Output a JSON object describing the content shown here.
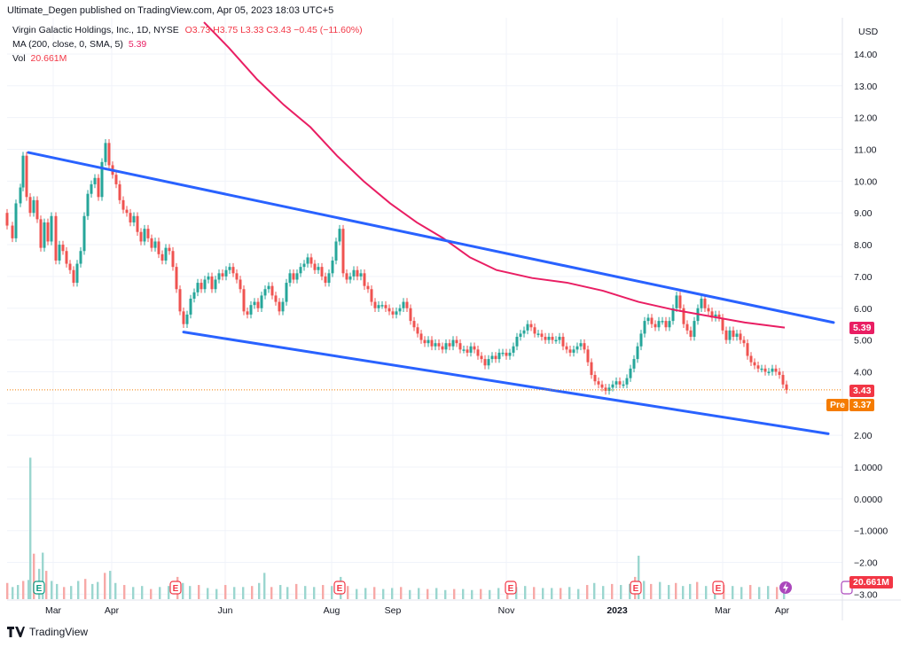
{
  "header": {
    "published_text": "Ultimate_Degen published on TradingView.com, Apr 05, 2023 18:03 UTC+5",
    "symbol_text": "Virgin Galactic Holdings, Inc., 1D, NYSE",
    "ohlc_text": "O3.73 H3.75 L3.33 C3.43 −0.45 (−11.60%)",
    "ma_label": "MA (200, close, 0, SMA, 5)",
    "ma_value": "5.39",
    "vol_label": "Vol",
    "vol_value": "20.661M"
  },
  "badges": {
    "ma": "5.39",
    "price": "3.43",
    "pre_label": "Pre",
    "pre_price": "3.37",
    "volume": "20.661M"
  },
  "footer": {
    "brand": "TradingView"
  },
  "colors": {
    "up": "#26a69a",
    "down": "#ef5350",
    "ma": "#e91e63",
    "trendline": "#2962ff",
    "price_line": "#f57c00",
    "vol_up": "#9bd6cf",
    "vol_down": "#f7a9a7"
  },
  "chart_data": {
    "type": "candlestick",
    "currency": "USD",
    "y_ticks": [
      "14.00",
      "13.00",
      "12.00",
      "11.00",
      "10.00",
      "9.00",
      "8.00",
      "7.00",
      "6.00",
      "5.00",
      "4.00",
      "2.00",
      "1.0000",
      "0.0000",
      "−1.0000",
      "−2.00",
      "−3.00"
    ],
    "x_ticks": [
      "Mar",
      "Apr",
      "Jun",
      "Aug",
      "Sep",
      "Nov",
      "2023",
      "Mar",
      "Apr"
    ],
    "price_path": [
      [
        0,
        9.0
      ],
      [
        8,
        8.6
      ],
      [
        14,
        8.2
      ],
      [
        18,
        9.3
      ],
      [
        23,
        9.8
      ],
      [
        26,
        10.8
      ],
      [
        30,
        9.5
      ],
      [
        34,
        9.0
      ],
      [
        38,
        9.4
      ],
      [
        42,
        8.8
      ],
      [
        46,
        7.9
      ],
      [
        50,
        8.7
      ],
      [
        54,
        8.1
      ],
      [
        58,
        8.9
      ],
      [
        63,
        7.5
      ],
      [
        67,
        8.0
      ],
      [
        71,
        7.8
      ],
      [
        75,
        7.4
      ],
      [
        79,
        7.2
      ],
      [
        83,
        6.8
      ],
      [
        87,
        7.4
      ],
      [
        91,
        7.8
      ],
      [
        95,
        8.9
      ],
      [
        99,
        9.6
      ],
      [
        103,
        9.9
      ],
      [
        107,
        10.1
      ],
      [
        111,
        9.5
      ],
      [
        115,
        10.6
      ],
      [
        119,
        11.2
      ],
      [
        123,
        10.5
      ],
      [
        127,
        10.2
      ],
      [
        131,
        9.9
      ],
      [
        135,
        9.4
      ],
      [
        139,
        9.1
      ],
      [
        143,
        9.0
      ],
      [
        147,
        8.7
      ],
      [
        151,
        8.9
      ],
      [
        155,
        8.4
      ],
      [
        159,
        8.1
      ],
      [
        163,
        8.5
      ],
      [
        167,
        8.2
      ],
      [
        171,
        7.9
      ],
      [
        175,
        8.1
      ],
      [
        179,
        7.7
      ],
      [
        183,
        7.5
      ],
      [
        187,
        7.9
      ],
      [
        191,
        7.8
      ],
      [
        195,
        7.3
      ],
      [
        199,
        6.6
      ],
      [
        203,
        5.9
      ],
      [
        207,
        5.5
      ],
      [
        211,
        5.8
      ],
      [
        215,
        6.3
      ],
      [
        219,
        6.5
      ],
      [
        223,
        6.8
      ],
      [
        227,
        6.6
      ],
      [
        231,
        6.9
      ],
      [
        235,
        7.0
      ],
      [
        239,
        6.6
      ],
      [
        243,
        6.9
      ],
      [
        247,
        7.1
      ],
      [
        251,
        7.0
      ],
      [
        255,
        7.2
      ],
      [
        259,
        7.3
      ],
      [
        263,
        7.1
      ],
      [
        267,
        6.9
      ],
      [
        271,
        6.6
      ],
      [
        275,
        5.9
      ],
      [
        279,
        5.8
      ],
      [
        283,
        6.1
      ],
      [
        287,
        6.2
      ],
      [
        291,
        6.0
      ],
      [
        295,
        6.4
      ],
      [
        299,
        6.6
      ],
      [
        303,
        6.7
      ],
      [
        307,
        6.4
      ],
      [
        311,
        6.2
      ],
      [
        315,
        5.9
      ],
      [
        319,
        6.2
      ],
      [
        323,
        6.8
      ],
      [
        327,
        7.1
      ],
      [
        331,
        6.9
      ],
      [
        335,
        7.1
      ],
      [
        339,
        7.3
      ],
      [
        343,
        7.4
      ],
      [
        347,
        7.6
      ],
      [
        351,
        7.4
      ],
      [
        355,
        7.2
      ],
      [
        359,
        7.3
      ],
      [
        363,
        7.0
      ],
      [
        367,
        6.8
      ],
      [
        371,
        7.1
      ],
      [
        375,
        7.5
      ],
      [
        379,
        8.1
      ],
      [
        383,
        8.5
      ],
      [
        387,
        7.1
      ],
      [
        391,
        6.9
      ],
      [
        395,
        7.0
      ],
      [
        399,
        7.2
      ],
      [
        403,
        7.0
      ],
      [
        407,
        7.1
      ],
      [
        411,
        6.7
      ],
      [
        415,
        6.6
      ],
      [
        419,
        6.2
      ],
      [
        423,
        6.0
      ],
      [
        427,
        6.1
      ],
      [
        431,
        6.1
      ],
      [
        435,
        6.0
      ],
      [
        439,
        5.9
      ],
      [
        443,
        5.8
      ],
      [
        447,
        5.9
      ],
      [
        451,
        6.0
      ],
      [
        455,
        6.2
      ],
      [
        459,
        6.0
      ],
      [
        463,
        5.6
      ],
      [
        467,
        5.4
      ],
      [
        471,
        5.2
      ],
      [
        475,
        5.0
      ],
      [
        479,
        4.9
      ],
      [
        483,
        5.0
      ],
      [
        487,
        4.8
      ],
      [
        491,
        4.9
      ],
      [
        495,
        4.8
      ],
      [
        499,
        4.7
      ],
      [
        503,
        4.9
      ],
      [
        507,
        4.8
      ],
      [
        511,
        5.0
      ],
      [
        515,
        4.9
      ],
      [
        519,
        4.7
      ],
      [
        523,
        4.7
      ],
      [
        527,
        4.6
      ],
      [
        531,
        4.8
      ],
      [
        535,
        4.7
      ],
      [
        539,
        4.5
      ],
      [
        543,
        4.4
      ],
      [
        547,
        4.2
      ],
      [
        551,
        4.4
      ],
      [
        555,
        4.5
      ],
      [
        559,
        4.4
      ],
      [
        563,
        4.6
      ],
      [
        567,
        4.6
      ],
      [
        571,
        4.5
      ],
      [
        575,
        4.6
      ],
      [
        579,
        4.8
      ],
      [
        583,
        5.1
      ],
      [
        587,
        5.2
      ],
      [
        591,
        5.3
      ],
      [
        595,
        5.5
      ],
      [
        599,
        5.4
      ],
      [
        603,
        5.2
      ],
      [
        607,
        5.2
      ],
      [
        611,
        5.1
      ],
      [
        615,
        5.0
      ],
      [
        619,
        5.1
      ],
      [
        623,
        5.0
      ],
      [
        627,
        5.0
      ],
      [
        631,
        5.1
      ],
      [
        635,
        4.8
      ],
      [
        639,
        4.7
      ],
      [
        643,
        4.6
      ],
      [
        647,
        4.7
      ],
      [
        651,
        4.8
      ],
      [
        655,
        4.9
      ],
      [
        659,
        4.7
      ],
      [
        663,
        4.3
      ],
      [
        667,
        3.9
      ],
      [
        671,
        3.7
      ],
      [
        675,
        3.6
      ],
      [
        679,
        3.5
      ],
      [
        683,
        3.4
      ],
      [
        687,
        3.5
      ],
      [
        691,
        3.6
      ],
      [
        695,
        3.7
      ],
      [
        699,
        3.6
      ],
      [
        703,
        3.6
      ],
      [
        707,
        3.8
      ],
      [
        711,
        4.1
      ],
      [
        715,
        4.4
      ],
      [
        719,
        4.8
      ],
      [
        723,
        5.2
      ],
      [
        727,
        5.6
      ],
      [
        731,
        5.7
      ],
      [
        735,
        5.5
      ],
      [
        739,
        5.4
      ],
      [
        743,
        5.6
      ],
      [
        747,
        5.6
      ],
      [
        751,
        5.4
      ],
      [
        755,
        5.6
      ],
      [
        759,
        6.0
      ],
      [
        763,
        6.4
      ],
      [
        767,
        6.0
      ],
      [
        771,
        5.5
      ],
      [
        775,
        5.3
      ],
      [
        779,
        5.1
      ],
      [
        783,
        5.6
      ],
      [
        787,
        6.0
      ],
      [
        791,
        6.3
      ],
      [
        795,
        6.0
      ],
      [
        799,
        5.9
      ],
      [
        803,
        5.7
      ],
      [
        807,
        5.8
      ],
      [
        811,
        5.7
      ],
      [
        815,
        5.3
      ],
      [
        819,
        5.0
      ],
      [
        823,
        5.3
      ],
      [
        827,
        5.1
      ],
      [
        831,
        5.2
      ],
      [
        835,
        5.0
      ],
      [
        839,
        4.9
      ],
      [
        843,
        4.5
      ],
      [
        847,
        4.3
      ],
      [
        851,
        4.2
      ],
      [
        855,
        4.1
      ],
      [
        859,
        4.1
      ],
      [
        863,
        4.0
      ],
      [
        867,
        4.0
      ],
      [
        871,
        4.1
      ],
      [
        875,
        4.0
      ],
      [
        879,
        3.9
      ],
      [
        883,
        3.6
      ],
      [
        887,
        3.43
      ]
    ],
    "ma200_path": [
      [
        230,
        15.0
      ],
      [
        258,
        14.2
      ],
      [
        290,
        13.2
      ],
      [
        320,
        12.4
      ],
      [
        350,
        11.7
      ],
      [
        380,
        10.8
      ],
      [
        410,
        10.0
      ],
      [
        440,
        9.3
      ],
      [
        470,
        8.7
      ],
      [
        500,
        8.2
      ],
      [
        530,
        7.6
      ],
      [
        560,
        7.2
      ],
      [
        600,
        6.95
      ],
      [
        640,
        6.8
      ],
      [
        680,
        6.55
      ],
      [
        720,
        6.2
      ],
      [
        760,
        5.95
      ],
      [
        800,
        5.75
      ],
      [
        840,
        5.55
      ],
      [
        885,
        5.39
      ]
    ],
    "trendlines": [
      {
        "from": [
          32,
          10.9
        ],
        "to": [
          940,
          5.55
        ]
      },
      {
        "from": [
          207,
          5.25
        ],
        "to": [
          934,
          2.05
        ]
      }
    ],
    "volume": [
      [
        8,
        1.6
      ],
      [
        14,
        1.2
      ],
      [
        20,
        1.4
      ],
      [
        26,
        1.8
      ],
      [
        32,
        1.9
      ],
      [
        34,
        14.0
      ],
      [
        38,
        4.5
      ],
      [
        44,
        3.0
      ],
      [
        48,
        4.6
      ],
      [
        52,
        2.8
      ],
      [
        58,
        1.8
      ],
      [
        64,
        1.5
      ],
      [
        72,
        1.2
      ],
      [
        80,
        1.3
      ],
      [
        88,
        1.8
      ],
      [
        96,
        2.0
      ],
      [
        104,
        1.5
      ],
      [
        110,
        1.7
      ],
      [
        118,
        2.6
      ],
      [
        124,
        2.8
      ],
      [
        130,
        1.6
      ],
      [
        140,
        1.4
      ],
      [
        150,
        1.2
      ],
      [
        160,
        1.3
      ],
      [
        170,
        1.0
      ],
      [
        180,
        1.2
      ],
      [
        190,
        1.3
      ],
      [
        200,
        2.2
      ],
      [
        206,
        1.6
      ],
      [
        214,
        1.3
      ],
      [
        224,
        1.4
      ],
      [
        234,
        1.1
      ],
      [
        244,
        1.0
      ],
      [
        254,
        1.4
      ],
      [
        264,
        1.2
      ],
      [
        274,
        1.2
      ],
      [
        284,
        1.3
      ],
      [
        292,
        1.6
      ],
      [
        298,
        2.6
      ],
      [
        306,
        1.2
      ],
      [
        316,
        1.4
      ],
      [
        324,
        1.2
      ],
      [
        334,
        1.5
      ],
      [
        344,
        1.3
      ],
      [
        354,
        1.2
      ],
      [
        364,
        1.4
      ],
      [
        374,
        1.3
      ],
      [
        384,
        2.2
      ],
      [
        392,
        1.3
      ],
      [
        402,
        1.0
      ],
      [
        412,
        1.1
      ],
      [
        422,
        1.2
      ],
      [
        432,
        1.0
      ],
      [
        442,
        1.1
      ],
      [
        452,
        1.2
      ],
      [
        462,
        0.9
      ],
      [
        472,
        1.1
      ],
      [
        482,
        1.0
      ],
      [
        492,
        1.1
      ],
      [
        502,
        0.9
      ],
      [
        512,
        1.0
      ],
      [
        522,
        1.0
      ],
      [
        532,
        0.9
      ],
      [
        542,
        1.0
      ],
      [
        552,
        0.9
      ],
      [
        562,
        1.1
      ],
      [
        572,
        1.0
      ],
      [
        582,
        1.2
      ],
      [
        592,
        1.3
      ],
      [
        602,
        1.2
      ],
      [
        612,
        1.1
      ],
      [
        622,
        1.1
      ],
      [
        632,
        1.1
      ],
      [
        642,
        1.2
      ],
      [
        652,
        1.0
      ],
      [
        662,
        1.4
      ],
      [
        670,
        1.6
      ],
      [
        680,
        1.3
      ],
      [
        690,
        1.5
      ],
      [
        700,
        1.4
      ],
      [
        710,
        1.5
      ],
      [
        716,
        2.2
      ],
      [
        720,
        4.3
      ],
      [
        726,
        1.8
      ],
      [
        734,
        1.5
      ],
      [
        744,
        1.7
      ],
      [
        754,
        1.4
      ],
      [
        762,
        1.6
      ],
      [
        770,
        1.3
      ],
      [
        778,
        1.5
      ],
      [
        786,
        1.7
      ],
      [
        796,
        1.3
      ],
      [
        806,
        1.2
      ],
      [
        816,
        1.4
      ],
      [
        826,
        1.3
      ],
      [
        836,
        1.2
      ],
      [
        846,
        1.4
      ],
      [
        856,
        1.2
      ],
      [
        866,
        1.3
      ],
      [
        876,
        1.2
      ],
      [
        884,
        1.5
      ]
    ]
  }
}
